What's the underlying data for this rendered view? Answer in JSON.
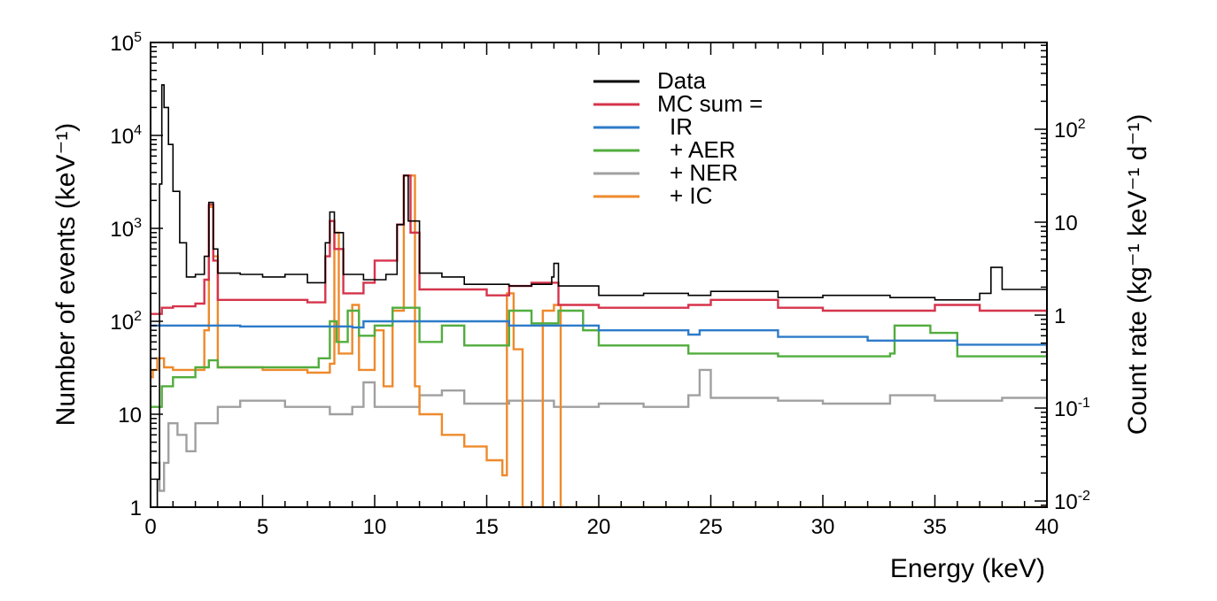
{
  "chart_data": {
    "type": "line",
    "title": "",
    "xlabel": "Energy (keV)",
    "ylabel": "Number of events (keV⁻¹)",
    "y2label": "Count rate (kg⁻¹ keV⁻¹ d⁻¹)",
    "xlim": [
      0,
      40
    ],
    "ylim": [
      1,
      100000
    ],
    "yscale": "log",
    "y2lim": [
      0.00858,
      858
    ],
    "y2scale": "log",
    "grid": false,
    "legend_position": "top-center",
    "x_ticks": [
      "0",
      "5",
      "10",
      "15",
      "20",
      "25",
      "30",
      "35",
      "40"
    ],
    "y_ticks": [
      {
        "base": "1",
        "exp": ""
      },
      {
        "base": "10",
        "exp": ""
      },
      {
        "base": "10",
        "exp": "2"
      },
      {
        "base": "10",
        "exp": "3"
      },
      {
        "base": "10",
        "exp": "4"
      },
      {
        "base": "10",
        "exp": "5"
      }
    ],
    "y2_ticks": [
      {
        "base": "10",
        "exp": "-2"
      },
      {
        "base": "10",
        "exp": "-1"
      },
      {
        "base": "1",
        "exp": ""
      },
      {
        "base": "10",
        "exp": ""
      },
      {
        "base": "10",
        "exp": "2"
      }
    ],
    "legend": [
      {
        "label": "Data",
        "color": "#000000"
      },
      {
        "label": "MC sum =",
        "color": "#d6344c"
      },
      {
        "label": "IR",
        "color": "#2d7bc9"
      },
      {
        "label": "+ AER",
        "color": "#52ad3e"
      },
      {
        "label": "+ NER",
        "color": "#a0a0a0"
      },
      {
        "label": "+ IC",
        "color": "#ee8a2c"
      }
    ],
    "series": [
      {
        "name": "Data",
        "color": "#000000",
        "points": [
          [
            0.2,
            1
          ],
          [
            0.3,
            2
          ],
          [
            0.4,
            3000
          ],
          [
            0.5,
            35000
          ],
          [
            0.6,
            20000
          ],
          [
            0.8,
            8000
          ],
          [
            1.0,
            2500
          ],
          [
            1.3,
            700
          ],
          [
            1.6,
            300
          ],
          [
            2.0,
            320
          ],
          [
            2.4,
            500
          ],
          [
            2.6,
            1900
          ],
          [
            2.8,
            600
          ],
          [
            3.0,
            330
          ],
          [
            4.0,
            320
          ],
          [
            5.0,
            300
          ],
          [
            6.0,
            320
          ],
          [
            7.0,
            260
          ],
          [
            7.8,
            700
          ],
          [
            8.0,
            1500
          ],
          [
            8.2,
            900
          ],
          [
            8.6,
            320
          ],
          [
            9.5,
            280
          ],
          [
            10.5,
            320
          ],
          [
            11.0,
            1100
          ],
          [
            11.3,
            3700
          ],
          [
            11.5,
            1200
          ],
          [
            12.0,
            330
          ],
          [
            13.0,
            300
          ],
          [
            14.0,
            250
          ],
          [
            16.0,
            240
          ],
          [
            17.0,
            250
          ],
          [
            17.9,
            300
          ],
          [
            18.0,
            420
          ],
          [
            18.2,
            240
          ],
          [
            20.0,
            190
          ],
          [
            22.0,
            200
          ],
          [
            24.0,
            190
          ],
          [
            25.0,
            210
          ],
          [
            28.0,
            180
          ],
          [
            30.0,
            190
          ],
          [
            33.0,
            180
          ],
          [
            35.0,
            170
          ],
          [
            37.0,
            200
          ],
          [
            37.5,
            380
          ],
          [
            38.0,
            220
          ],
          [
            40.0,
            160
          ]
        ]
      },
      {
        "name": "MC sum =",
        "color": "#d6344c",
        "points": [
          [
            0,
            120
          ],
          [
            0.5,
            140
          ],
          [
            1.0,
            145
          ],
          [
            2.0,
            155
          ],
          [
            2.4,
            280
          ],
          [
            2.6,
            1800
          ],
          [
            2.8,
            450
          ],
          [
            3.0,
            170
          ],
          [
            5.0,
            170
          ],
          [
            7.0,
            160
          ],
          [
            7.8,
            500
          ],
          [
            8.0,
            1200
          ],
          [
            8.2,
            600
          ],
          [
            8.6,
            200
          ],
          [
            9.5,
            260
          ],
          [
            10.0,
            450
          ],
          [
            11.0,
            1100
          ],
          [
            11.3,
            3700
          ],
          [
            11.6,
            900
          ],
          [
            12.0,
            220
          ],
          [
            13.0,
            220
          ],
          [
            15.0,
            190
          ],
          [
            16.0,
            240
          ],
          [
            17.0,
            260
          ],
          [
            18.0,
            260
          ],
          [
            18.2,
            150
          ],
          [
            20.0,
            140
          ],
          [
            22.0,
            140
          ],
          [
            24.0,
            150
          ],
          [
            25.0,
            170
          ],
          [
            28.0,
            140
          ],
          [
            30.0,
            130
          ],
          [
            33.0,
            130
          ],
          [
            35.0,
            150
          ],
          [
            37.0,
            130
          ],
          [
            40.0,
            120
          ]
        ]
      },
      {
        "name": "IR",
        "color": "#2d7bc9",
        "points": [
          [
            0,
            90
          ],
          [
            4,
            88
          ],
          [
            9,
            86
          ],
          [
            9.5,
            100
          ],
          [
            12,
            100
          ],
          [
            16,
            90
          ],
          [
            20,
            80
          ],
          [
            24,
            72
          ],
          [
            24.5,
            80
          ],
          [
            28,
            68
          ],
          [
            32,
            62
          ],
          [
            36,
            56
          ],
          [
            40,
            50
          ]
        ]
      },
      {
        "name": "+ AER",
        "color": "#52ad3e",
        "points": [
          [
            0,
            12
          ],
          [
            0.5,
            20
          ],
          [
            1,
            25
          ],
          [
            2,
            32
          ],
          [
            2.6,
            38
          ],
          [
            3,
            32
          ],
          [
            6,
            32
          ],
          [
            7.5,
            40
          ],
          [
            8,
            100
          ],
          [
            8.3,
            60
          ],
          [
            8.8,
            130
          ],
          [
            9.3,
            70
          ],
          [
            10,
            90
          ],
          [
            10.8,
            140
          ],
          [
            11.3,
            140
          ],
          [
            12,
            60
          ],
          [
            13,
            90
          ],
          [
            14,
            55
          ],
          [
            15.5,
            55
          ],
          [
            16,
            130
          ],
          [
            17,
            95
          ],
          [
            18.2,
            130
          ],
          [
            19.3,
            80
          ],
          [
            20,
            55
          ],
          [
            24,
            45
          ],
          [
            28,
            42
          ],
          [
            33,
            45
          ],
          [
            33.2,
            90
          ],
          [
            34.8,
            75
          ],
          [
            36,
            42
          ],
          [
            40,
            45
          ]
        ]
      },
      {
        "name": "+ NER",
        "color": "#a0a0a0",
        "points": [
          [
            0.1,
            3
          ],
          [
            0.4,
            1.5
          ],
          [
            0.6,
            3
          ],
          [
            0.8,
            8
          ],
          [
            1.2,
            6
          ],
          [
            1.6,
            4
          ],
          [
            2,
            8
          ],
          [
            3,
            12
          ],
          [
            4,
            14
          ],
          [
            6,
            12
          ],
          [
            8,
            10
          ],
          [
            9,
            12
          ],
          [
            9.5,
            22
          ],
          [
            10,
            12
          ],
          [
            12,
            16
          ],
          [
            13,
            18
          ],
          [
            14,
            13
          ],
          [
            16,
            14
          ],
          [
            18,
            12
          ],
          [
            20,
            13
          ],
          [
            22,
            12
          ],
          [
            24,
            16
          ],
          [
            24.5,
            30
          ],
          [
            25,
            15
          ],
          [
            28,
            14
          ],
          [
            30,
            13
          ],
          [
            33,
            16
          ],
          [
            35,
            14
          ],
          [
            38,
            15
          ],
          [
            40,
            17
          ]
        ]
      },
      {
        "name": "+ IC",
        "color": "#ee8a2c",
        "points": [
          [
            0,
            25
          ],
          [
            0.1,
            30
          ],
          [
            0.3,
            40
          ],
          [
            0.6,
            32
          ],
          [
            1,
            30
          ],
          [
            2,
            30
          ],
          [
            2.4,
            80
          ],
          [
            2.6,
            1700
          ],
          [
            2.8,
            500
          ],
          [
            3,
            32
          ],
          [
            5,
            30
          ],
          [
            7,
            28
          ],
          [
            8,
            35
          ],
          [
            8.2,
            900
          ],
          [
            8.4,
            45
          ],
          [
            9,
            150
          ],
          [
            9.3,
            30
          ],
          [
            10,
            80
          ],
          [
            10.4,
            20
          ],
          [
            10.8,
            130
          ],
          [
            11.3,
            3700
          ],
          [
            11.8,
            20
          ],
          [
            12,
            10
          ],
          [
            13,
            6
          ],
          [
            14,
            4.5
          ],
          [
            15,
            3.2
          ],
          [
            15.7,
            2.2
          ],
          [
            15.9,
            200
          ],
          [
            16.2,
            50
          ],
          [
            16.6,
            1
          ],
          [
            17,
            0.5
          ],
          [
            17.3,
            1
          ],
          [
            17.5,
            130
          ],
          [
            18,
            150
          ],
          [
            18.3,
            1
          ],
          [
            40,
            1
          ]
        ]
      }
    ]
  }
}
